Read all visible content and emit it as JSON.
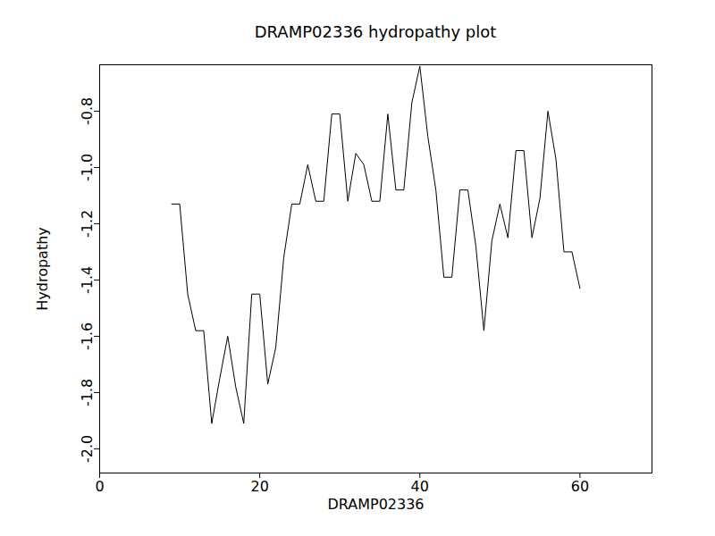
{
  "chart_data": {
    "type": "line",
    "title": "DRAMP02336 hydropathy plot",
    "x_label": "DRAMP02336",
    "y_label": "Hydropathy",
    "x": [
      9,
      10,
      11,
      12,
      13,
      14,
      15,
      16,
      17,
      18,
      19,
      20,
      21,
      22,
      23,
      24,
      25,
      26,
      27,
      28,
      29,
      30,
      31,
      32,
      33,
      34,
      35,
      36,
      37,
      38,
      39,
      40,
      41,
      42,
      43,
      44,
      45,
      46,
      47,
      48,
      49,
      50,
      51,
      52,
      53,
      54,
      55,
      56,
      57,
      58,
      59,
      60
    ],
    "values": [
      -1.13,
      -1.13,
      -1.45,
      -1.58,
      -1.58,
      -1.91,
      -1.75,
      -1.6,
      -1.78,
      -1.91,
      -1.45,
      -1.45,
      -1.77,
      -1.64,
      -1.32,
      -1.13,
      -1.13,
      -0.99,
      -1.12,
      -1.12,
      -0.81,
      -0.81,
      -1.12,
      -0.95,
      -0.99,
      -1.12,
      -1.12,
      -0.81,
      -1.08,
      -1.08,
      -0.77,
      -0.64,
      -0.89,
      -1.08,
      -1.39,
      -1.39,
      -1.08,
      -1.08,
      -1.28,
      -1.58,
      -1.26,
      -1.13,
      -1.25,
      -0.94,
      -0.94,
      -1.25,
      -1.11,
      -0.8,
      -0.97,
      -1.3,
      -1.3,
      -1.43
    ],
    "color": "#000000",
    "xlim": [
      0,
      69
    ],
    "xticks": [
      0,
      20,
      40,
      60
    ],
    "ylim": [
      -2.086,
      -0.635
    ],
    "yticks": [
      {
        "value": -2.0,
        "label": "-2.0"
      },
      -1.8,
      -1.6,
      -1.4,
      -1.2,
      {
        "value": -1.0,
        "label": "-1.0"
      },
      -0.8
    ],
    "grid": false
  }
}
